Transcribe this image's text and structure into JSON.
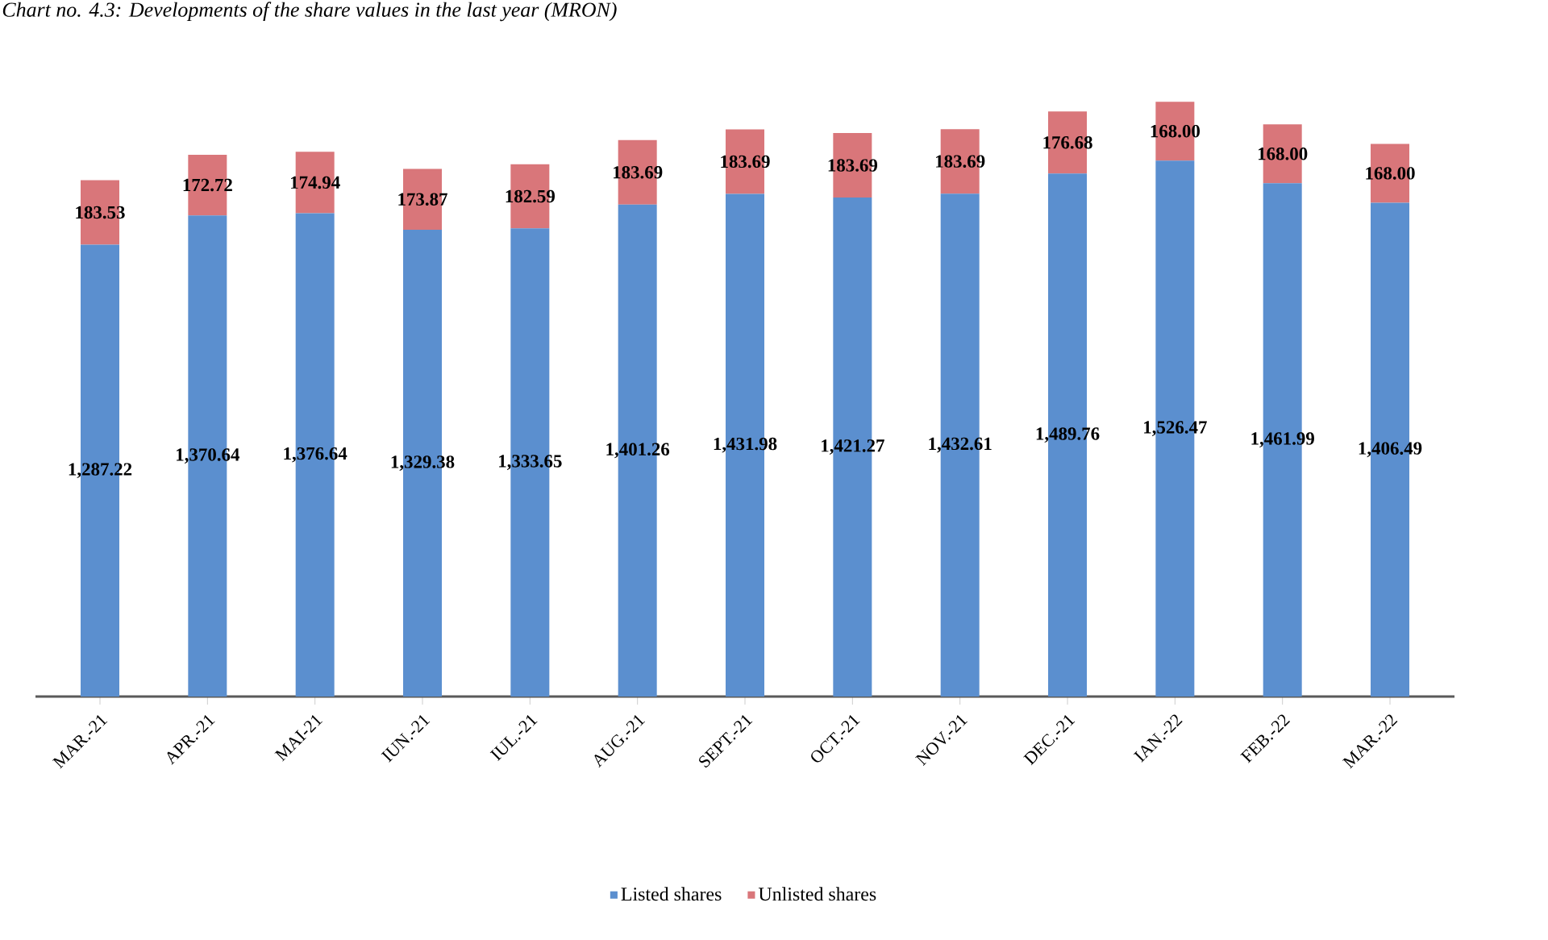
{
  "chart_data": {
    "type": "bar",
    "title": "Chart no. 4.3: Developments of the share values in the last year (MRON)",
    "categories": [
      "MAR.-21",
      "APR.-21",
      "MAI-21",
      "IUN.-21",
      "IUL.-21",
      "AUG.-21",
      "SEPT.-21",
      "OCT.-21",
      "NOV.-21",
      "DEC.-21",
      "IAN.-22",
      "FEB.-22",
      "MAR.-22"
    ],
    "stacked": true,
    "series": [
      {
        "name": "Listed shares",
        "color": "#5b8fcf",
        "values": [
          1287.22,
          1370.64,
          1376.64,
          1329.38,
          1333.65,
          1401.26,
          1431.98,
          1421.27,
          1432.61,
          1489.76,
          1526.47,
          1461.99,
          1406.49
        ],
        "value_labels": [
          "1,287.22",
          "1,370.64",
          "1,376.64",
          "1,329.38",
          "1,333.65",
          "1,401.26",
          "1,431.98",
          "1,421.27",
          "1,432.61",
          "1,489.76",
          "1,526.47",
          "1,461.99",
          "1,406.49"
        ]
      },
      {
        "name": "Unlisted shares",
        "color": "#d9767a",
        "values": [
          183.53,
          172.72,
          174.94,
          173.87,
          182.59,
          183.69,
          183.69,
          183.69,
          183.69,
          176.68,
          168.0,
          168.0,
          168.0
        ],
        "value_labels": [
          "183.53",
          "172.72",
          "174.94",
          "173.87",
          "182.59",
          "183.69",
          "183.69",
          "183.69",
          "183.69",
          "176.68",
          "168.00",
          "168.00",
          "168.00"
        ]
      }
    ],
    "legend": "bottom"
  }
}
